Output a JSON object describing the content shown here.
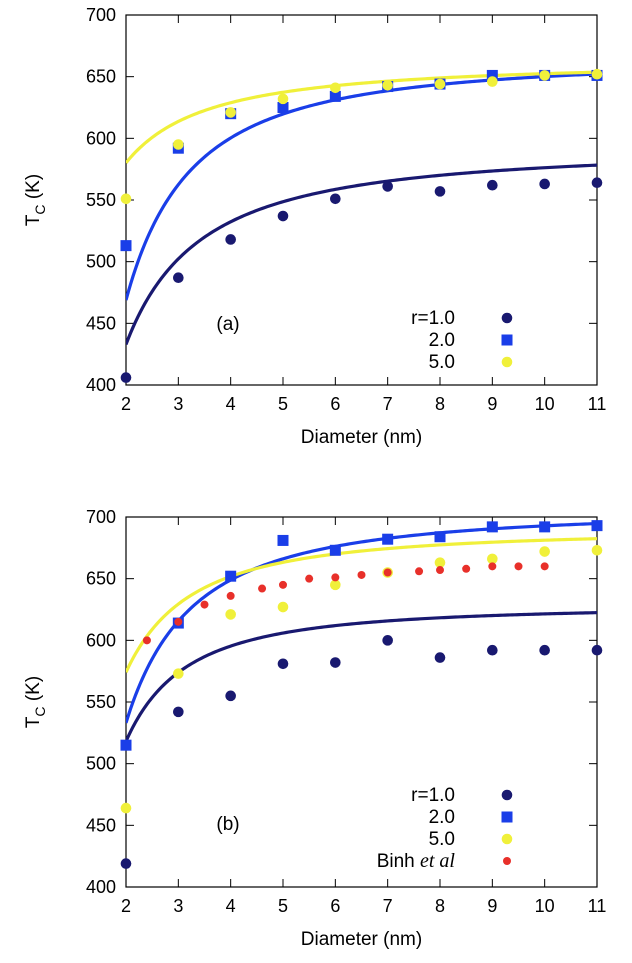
{
  "chart_data": [
    {
      "type": "scatter",
      "panel_label": "(a)",
      "xlabel": "Diameter (nm)",
      "ylabel_main": "T",
      "ylabel_sub": "C",
      "ylabel_unit": " (K)",
      "xlim": [
        2,
        11
      ],
      "ylim": [
        400,
        700
      ],
      "xticks": [
        2,
        3,
        4,
        5,
        6,
        7,
        8,
        9,
        10,
        11
      ],
      "yticks": [
        400,
        450,
        500,
        550,
        600,
        650,
        700
      ],
      "legend_position": "bottom-right",
      "series": [
        {
          "name": "r=1.0",
          "color": "#191970",
          "marker": "circle",
          "x": [
            2,
            3,
            4,
            5,
            6,
            7,
            8,
            9,
            10,
            11
          ],
          "y": [
            406,
            487,
            518,
            537,
            551,
            561,
            557,
            562,
            563,
            564
          ],
          "fit": {
            "a": 593,
            "b": 2.7,
            "c": 1.4
          }
        },
        {
          "name": "2.0",
          "color": "#1a3ee8",
          "marker": "square",
          "x": [
            2,
            3,
            4,
            5,
            6,
            7,
            8,
            9,
            10,
            11
          ],
          "y": [
            513,
            592,
            620,
            625,
            634,
            642,
            644,
            651,
            651,
            651
          ],
          "fit": {
            "a": 665,
            "b": 2.95,
            "c": 1.6
          }
        },
        {
          "name": "5.0",
          "color": "#f0f03a",
          "marker": "circle",
          "x": [
            2,
            3,
            4,
            5,
            6,
            7,
            8,
            9,
            10,
            11
          ],
          "y": [
            551,
            595,
            621,
            632,
            641,
            643,
            644,
            646,
            651,
            652
          ],
          "fit": {
            "a": 663,
            "b": 1.25,
            "c": 1.28
          }
        }
      ]
    },
    {
      "type": "scatter",
      "panel_label": "(b)",
      "xlabel": "Diameter (nm)",
      "ylabel_main": "T",
      "ylabel_sub": "C",
      "ylabel_unit": " (K)",
      "xlim": [
        2,
        11
      ],
      "ylim": [
        400,
        700
      ],
      "xticks": [
        2,
        3,
        4,
        5,
        6,
        7,
        8,
        9,
        10,
        11
      ],
      "yticks": [
        400,
        450,
        500,
        550,
        600,
        650,
        700
      ],
      "legend_position": "bottom-right",
      "series": [
        {
          "name": "r=1.0",
          "color": "#191970",
          "marker": "circle",
          "x": [
            2,
            3,
            4,
            5,
            6,
            7,
            8,
            9,
            10,
            11
          ],
          "y": [
            419,
            542,
            555,
            581,
            582,
            600,
            586,
            592,
            592,
            592
          ],
          "fit": {
            "a": 628,
            "b": 1.75,
            "c": 1.75
          }
        },
        {
          "name": "2.0",
          "color": "#1a3ee8",
          "marker": "square",
          "x": [
            2,
            3,
            4,
            5,
            6,
            7,
            8,
            9,
            10,
            11
          ],
          "y": [
            515,
            614,
            652,
            681,
            673,
            682,
            684,
            692,
            692,
            693
          ],
          "fit": {
            "a": 706,
            "b": 2.45,
            "c": 1.6
          }
        },
        {
          "name": "5.0",
          "color": "#f0f03a",
          "marker": "circle",
          "x": [
            2,
            3,
            4,
            5,
            6,
            7,
            8,
            9,
            10,
            11
          ],
          "y": [
            464,
            573,
            621,
            627,
            645,
            655,
            663,
            666,
            672,
            673
          ],
          "fit": {
            "a": 690,
            "b": 1.68,
            "c": 1.6
          }
        },
        {
          "name_main": "Binh ",
          "name_italic": "et al",
          "color": "#e8302a",
          "marker": "small-circle",
          "x": [
            2.4,
            3.0,
            3.5,
            4.0,
            4.6,
            5.0,
            5.5,
            6.0,
            6.5,
            7.0,
            7.6,
            8.0,
            8.5,
            9.0,
            9.5,
            10.0
          ],
          "y": [
            600,
            615,
            629,
            636,
            642,
            645,
            650,
            651,
            653,
            655,
            656,
            657,
            658,
            660,
            660,
            660
          ]
        }
      ]
    }
  ]
}
